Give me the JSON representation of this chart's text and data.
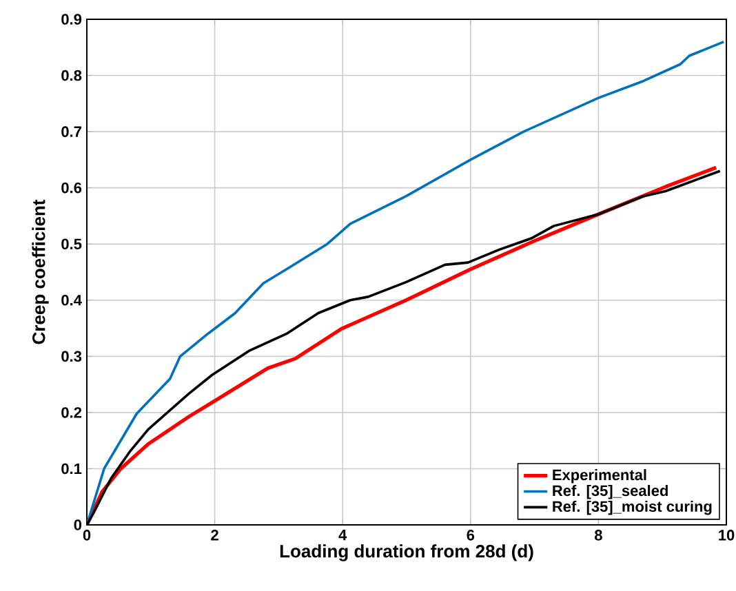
{
  "chart_data": {
    "type": "line",
    "xlabel": "Loading duration from 28d (d)",
    "ylabel": "Creep coefficient",
    "xlim": [
      0,
      10
    ],
    "ylim": [
      0,
      0.9
    ],
    "xticks": [
      0,
      2,
      4,
      6,
      8,
      10
    ],
    "yticks": [
      0,
      0.1,
      0.2,
      0.3,
      0.4,
      0.5,
      0.6,
      0.7,
      0.8,
      0.9
    ],
    "grid": true,
    "legend": "bottom right",
    "line_style": "solid",
    "marker": "none",
    "series": [
      {
        "name": "Experimental",
        "color": "#ff0000",
        "x": [
          0,
          0.24,
          0.53,
          0.96,
          1.6,
          1.96,
          2.83,
          3.26,
          3.98,
          4.99,
          6,
          6.97,
          8,
          9.05,
          9.84
        ],
        "values": [
          0,
          0.059,
          0.1,
          0.144,
          0.193,
          0.218,
          0.279,
          0.296,
          0.349,
          0.4,
          0.455,
          0.504,
          0.553,
          0.602,
          0.636
        ]
      },
      {
        "name": "Ref. [35]_sealed",
        "color": "#0072bd",
        "x": [
          0,
          0.27,
          0.78,
          1.3,
          1.46,
          1.89,
          2.32,
          2.76,
          3.12,
          3.76,
          4.12,
          4.99,
          6,
          6.83,
          8,
          8.7,
          9.28,
          9.42,
          9.96
        ],
        "values": [
          0,
          0.1,
          0.198,
          0.26,
          0.3,
          0.34,
          0.377,
          0.43,
          0.455,
          0.5,
          0.536,
          0.585,
          0.65,
          0.7,
          0.76,
          0.79,
          0.82,
          0.835,
          0.86
        ]
      },
      {
        "name": "Ref. [35]_moist curing",
        "color": "#000000",
        "x": [
          0,
          0.1,
          0.38,
          0.67,
          0.96,
          1.6,
          1.96,
          2.54,
          3.12,
          3.62,
          4.12,
          4.4,
          4.99,
          5.6,
          5.96,
          6.45,
          6.95,
          7.3,
          8,
          8.7,
          9.05,
          9.9
        ],
        "values": [
          0,
          0.02,
          0.083,
          0.13,
          0.17,
          0.234,
          0.267,
          0.31,
          0.34,
          0.377,
          0.4,
          0.406,
          0.432,
          0.463,
          0.467,
          0.49,
          0.51,
          0.532,
          0.553,
          0.585,
          0.594,
          0.63
        ]
      }
    ]
  }
}
